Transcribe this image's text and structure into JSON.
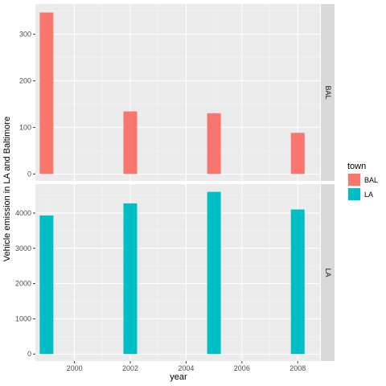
{
  "chart_data": {
    "type": "bar",
    "faceted": true,
    "xlabel": "year",
    "ylabel": "Vehicle emission in LA and Baltimore",
    "xlim": [
      1998.6,
      2008.8
    ],
    "x_ticks": [
      2000,
      2002,
      2004,
      2006,
      2008
    ],
    "legend": {
      "title": "town",
      "placement": "right"
    },
    "grid": true,
    "series": [
      {
        "name": "BAL",
        "color": "#F8766D",
        "x": [
          1999,
          2002,
          2005,
          2008
        ],
        "values": [
          346.8,
          134.3,
          130.4,
          88.3
        ],
        "ylim": [
          -15,
          365
        ],
        "y_ticks": [
          0,
          100,
          200,
          300
        ]
      },
      {
        "name": "LA",
        "color": "#00BFC4",
        "x": [
          1999,
          2002,
          2005,
          2008
        ],
        "values": [
          3931,
          4274,
          4601,
          4101
        ],
        "ylim": [
          -200,
          4820
        ],
        "y_ticks": [
          0,
          1000,
          2000,
          3000,
          4000
        ]
      }
    ]
  }
}
